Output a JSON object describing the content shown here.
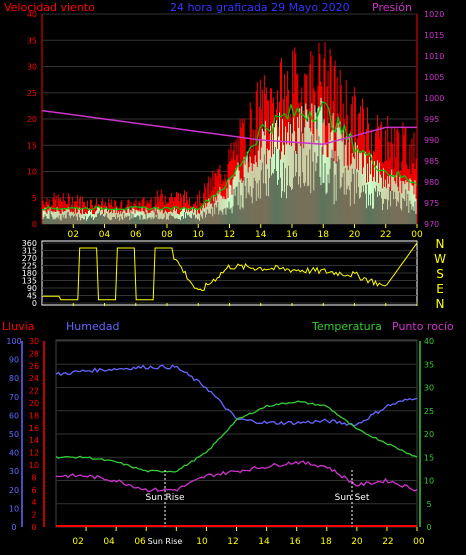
{
  "header": {
    "left_label": "Velocidad viento",
    "title": "24 hora graficada   29 Mayo 2020",
    "right_label": "Presión"
  },
  "colors": {
    "wind_gust": "#ff0000",
    "wind_avg": "#00cc00",
    "wind_low": "#ccffcc",
    "pressure": "#cc33cc",
    "direction": "#ffff00",
    "humidity": "#6666ff",
    "temperature": "#33cc33",
    "dewpoint": "#cc33cc",
    "rain": "#ff0000",
    "axis_left": "#ff0000",
    "axis_right": "#cc33cc",
    "time_axis": "#ffff00"
  },
  "time_ticks": [
    "02",
    "04",
    "06",
    "08",
    "10",
    "12",
    "14",
    "16",
    "18",
    "20",
    "22",
    "00"
  ],
  "direction_letters": [
    "N",
    "W",
    "S",
    "E",
    "N"
  ],
  "chart_data": [
    {
      "type": "line",
      "title": "24 hora graficada   29 Mayo 2020",
      "ylabel": "Velocidad viento",
      "y2label": "Presión",
      "ylim": [
        0,
        40
      ],
      "y2lim": [
        970,
        1020
      ],
      "yticks": [
        0,
        5,
        10,
        15,
        20,
        25,
        30,
        35,
        40
      ],
      "y2ticks": [
        970,
        975,
        980,
        985,
        990,
        995,
        1000,
        1005,
        1010,
        1015,
        1020
      ],
      "x": [
        "00",
        "02",
        "04",
        "06",
        "08",
        "10",
        "12",
        "14",
        "16",
        "18",
        "20",
        "22",
        "00"
      ],
      "series": [
        {
          "name": "gust",
          "values": [
            5,
            5,
            4,
            4,
            6,
            5,
            13,
            24,
            28,
            30,
            22,
            18,
            15
          ]
        },
        {
          "name": "avg",
          "values": [
            3,
            3,
            3,
            3,
            3,
            3,
            8,
            18,
            21,
            22,
            15,
            10,
            8
          ]
        },
        {
          "name": "pressure",
          "values": [
            997,
            996,
            995,
            994,
            993,
            992,
            991,
            990,
            989.5,
            989,
            991,
            993,
            993
          ]
        }
      ]
    },
    {
      "type": "line",
      "ylim": [
        0,
        360
      ],
      "yticks": [
        0,
        45,
        90,
        135,
        180,
        225,
        270,
        315,
        360
      ],
      "x": [
        "00",
        "02",
        "04",
        "06",
        "08",
        "10",
        "12",
        "14",
        "16",
        "18",
        "20",
        "22",
        "00"
      ],
      "series": [
        {
          "name": "direction",
          "values": [
            40,
            20,
            330,
            320,
            340,
            60,
            220,
            210,
            200,
            190,
            170,
            100,
            360
          ]
        }
      ]
    },
    {
      "type": "line",
      "y_rain_label": "Lluvia",
      "y_hum_label": "Humedad",
      "y_temp_label": "Temperatura",
      "y_dew_label": "Punto rocío",
      "rain_ticks": [
        0,
        2,
        4,
        6,
        8,
        10,
        12,
        14,
        16,
        18,
        20,
        22,
        24,
        26,
        28,
        30
      ],
      "hum_ticks": [
        0,
        10,
        20,
        30,
        40,
        50,
        60,
        70,
        80,
        90,
        100
      ],
      "temp_ticks": [
        0,
        5,
        10,
        15,
        20,
        25,
        30,
        35,
        40
      ],
      "annotations": [
        "Sun Rise",
        "Sun Set",
        "Sun Rise"
      ],
      "x": [
        "00",
        "02",
        "04",
        "06",
        "08",
        "10",
        "12",
        "14",
        "16",
        "18",
        "20",
        "22",
        "00"
      ],
      "series": [
        {
          "name": "humidity",
          "values": [
            82,
            84,
            85,
            86,
            86,
            75,
            58,
            56,
            56,
            57,
            55,
            65,
            70
          ]
        },
        {
          "name": "temperature",
          "values": [
            15,
            15,
            14,
            12,
            12,
            16,
            23,
            26,
            27,
            26,
            21,
            18,
            15
          ]
        },
        {
          "name": "dewpoint",
          "values": [
            11,
            11,
            10,
            8,
            8,
            11,
            12,
            13,
            14,
            13,
            9,
            10,
            8
          ]
        },
        {
          "name": "rain",
          "values": [
            0,
            0,
            0,
            0,
            0,
            0,
            0,
            0,
            0,
            0,
            0,
            0,
            0
          ]
        }
      ]
    }
  ]
}
